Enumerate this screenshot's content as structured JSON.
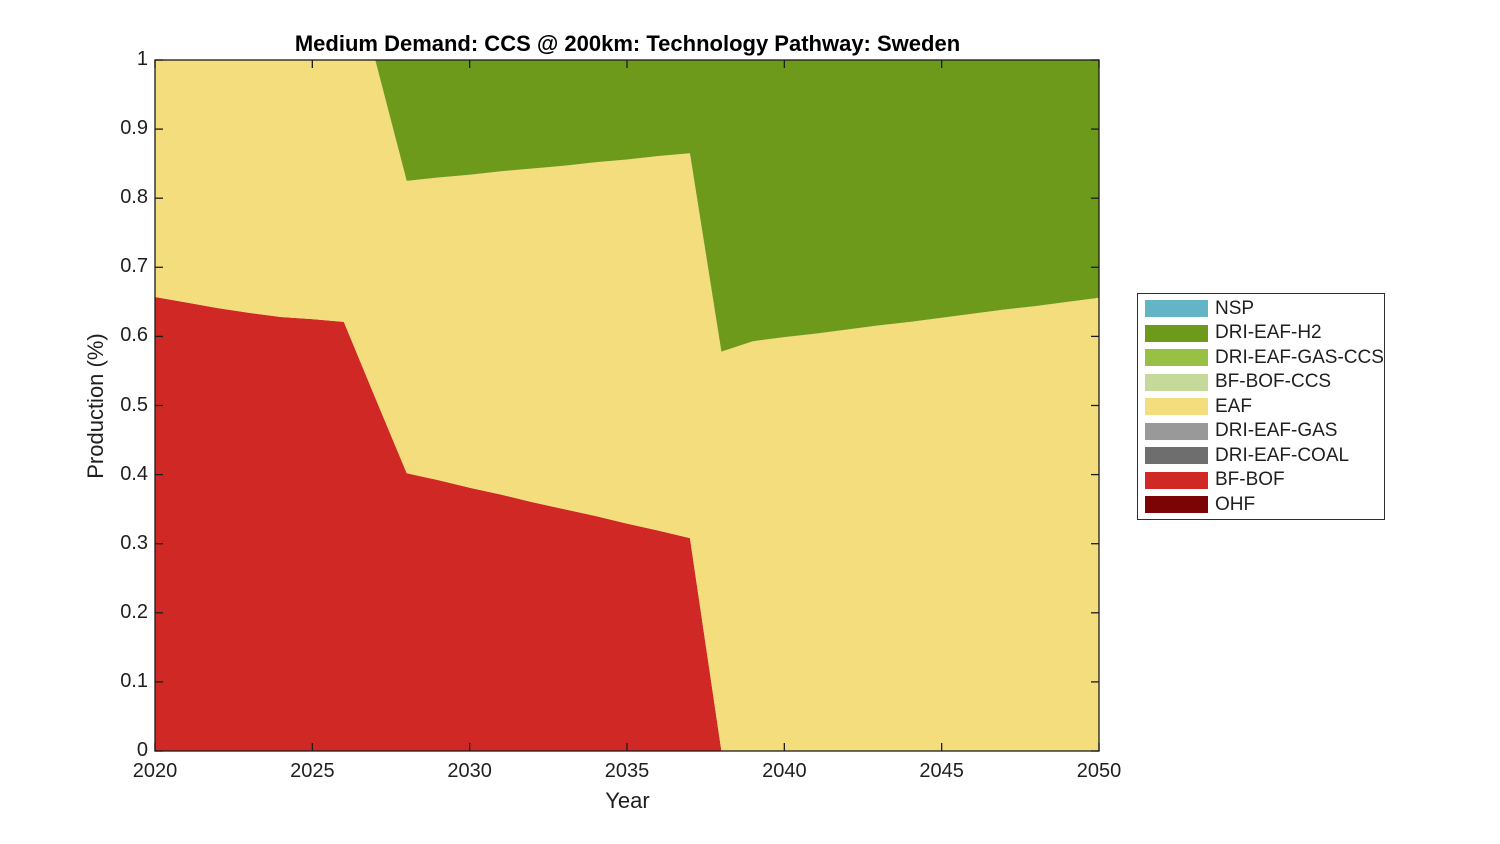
{
  "chart_data": {
    "type": "area",
    "stacked": true,
    "title": "Medium Demand: CCS @ 200km: Technology Pathway: Sweden",
    "xlabel": "Year",
    "ylabel": "Production (%)",
    "xlim": [
      2020,
      2050
    ],
    "ylim": [
      0,
      1
    ],
    "xticks": [
      2020,
      2025,
      2030,
      2035,
      2040,
      2045,
      2050
    ],
    "xtick_labels": [
      "2020",
      "2025",
      "2030",
      "2035",
      "2040",
      "2045",
      "2050"
    ],
    "yticks": [
      0,
      0.1,
      0.2,
      0.3,
      0.4,
      0.5,
      0.6,
      0.7,
      0.8,
      0.9,
      1
    ],
    "ytick_labels": [
      "0",
      "0.1",
      "0.2",
      "0.3",
      "0.4",
      "0.5",
      "0.6",
      "0.7",
      "0.8",
      "0.9",
      "1"
    ],
    "grid": false,
    "legend_position": "right-outside",
    "stacking_note": "series are listed in legend order (top to bottom); stacking in the plot is bottom-to-top in reverse of this list",
    "x": [
      2020,
      2021,
      2022,
      2023,
      2024,
      2025,
      2026,
      2027,
      2028,
      2029,
      2030,
      2031,
      2032,
      2033,
      2034,
      2035,
      2036,
      2037,
      2038,
      2039,
      2040,
      2041,
      2042,
      2043,
      2044,
      2045,
      2046,
      2047,
      2048,
      2049,
      2050
    ],
    "series": [
      {
        "name": "NSP",
        "color": "#63B4C4",
        "values": [
          0,
          0,
          0,
          0,
          0,
          0,
          0,
          0,
          0,
          0,
          0,
          0,
          0,
          0,
          0,
          0,
          0,
          0,
          0,
          0,
          0,
          0,
          0,
          0,
          0,
          0,
          0,
          0,
          0,
          0,
          0
        ]
      },
      {
        "name": "DRI-EAF-H2",
        "color": "#6E9A1B",
        "values": [
          0,
          0,
          0,
          0,
          0,
          0,
          0,
          0,
          0.175,
          0.17,
          0.166,
          0.161,
          0.157,
          0.153,
          0.148,
          0.144,
          0.139,
          0.135,
          0.422,
          0.407,
          0.401,
          0.396,
          0.39,
          0.384,
          0.379,
          0.373,
          0.367,
          0.361,
          0.356,
          0.35,
          0.344
        ]
      },
      {
        "name": "DRI-EAF-GAS-CCS",
        "color": "#97C045",
        "values": [
          0,
          0,
          0,
          0,
          0,
          0,
          0,
          0,
          0,
          0,
          0,
          0,
          0,
          0,
          0,
          0,
          0,
          0,
          0,
          0,
          0,
          0,
          0,
          0,
          0,
          0,
          0,
          0,
          0,
          0,
          0
        ]
      },
      {
        "name": "BF-BOF-CCS",
        "color": "#C5DA9A",
        "values": [
          0,
          0,
          0,
          0,
          0,
          0,
          0,
          0,
          0,
          0,
          0,
          0,
          0,
          0,
          0,
          0,
          0,
          0,
          0,
          0,
          0,
          0,
          0,
          0,
          0,
          0,
          0,
          0,
          0,
          0,
          0
        ]
      },
      {
        "name": "EAF",
        "color": "#F3DD7C",
        "values": [
          0.343,
          0.351,
          0.359,
          0.366,
          0.372,
          0.375,
          0.379,
          0.489,
          0.423,
          0.438,
          0.453,
          0.468,
          0.483,
          0.497,
          0.512,
          0.527,
          0.542,
          0.557,
          0.578,
          0.593,
          0.599,
          0.604,
          0.61,
          0.616,
          0.621,
          0.627,
          0.633,
          0.639,
          0.644,
          0.65,
          0.656
        ]
      },
      {
        "name": "DRI-EAF-GAS",
        "color": "#999999",
        "values": [
          0,
          0,
          0,
          0,
          0,
          0,
          0,
          0,
          0,
          0,
          0,
          0,
          0,
          0,
          0,
          0,
          0,
          0,
          0,
          0,
          0,
          0,
          0,
          0,
          0,
          0,
          0,
          0,
          0,
          0,
          0
        ]
      },
      {
        "name": "DRI-EAF-COAL",
        "color": "#6E6E6E",
        "values": [
          0,
          0,
          0,
          0,
          0,
          0,
          0,
          0,
          0,
          0,
          0,
          0,
          0,
          0,
          0,
          0,
          0,
          0,
          0,
          0,
          0,
          0,
          0,
          0,
          0,
          0,
          0,
          0,
          0,
          0,
          0
        ]
      },
      {
        "name": "BF-BOF",
        "color": "#D02824",
        "values": [
          0.657,
          0.649,
          0.641,
          0.634,
          0.628,
          0.625,
          0.621,
          0.511,
          0.402,
          0.392,
          0.381,
          0.371,
          0.36,
          0.35,
          0.34,
          0.329,
          0.319,
          0.308,
          0,
          0,
          0,
          0,
          0,
          0,
          0,
          0,
          0,
          0,
          0,
          0,
          0
        ]
      },
      {
        "name": "OHF",
        "color": "#7D0405",
        "values": [
          0,
          0,
          0,
          0,
          0,
          0,
          0,
          0,
          0,
          0,
          0,
          0,
          0,
          0,
          0,
          0,
          0,
          0,
          0,
          0,
          0,
          0,
          0,
          0,
          0,
          0,
          0,
          0,
          0,
          0,
          0
        ]
      }
    ]
  },
  "style": {
    "axis_color": "#1c1c1c",
    "text_color": "#1f1f1f",
    "background": "#ffffff"
  }
}
